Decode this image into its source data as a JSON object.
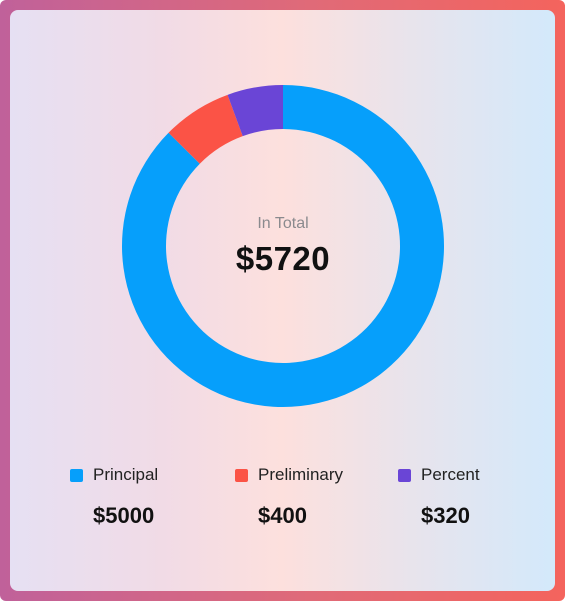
{
  "chart_data": {
    "type": "pie",
    "subtype": "donut",
    "center": {
      "label": "In Total",
      "value": "$5720"
    },
    "slices": [
      {
        "name": "Principal",
        "value": 5000,
        "display": "$5000",
        "color": "#069ffb"
      },
      {
        "name": "Preliminary",
        "value": 400,
        "display": "$400",
        "color": "#fb5346"
      },
      {
        "name": "Percent",
        "value": 320,
        "display": "$320",
        "color": "#6a45d6"
      }
    ],
    "legend_position": "bottom"
  }
}
